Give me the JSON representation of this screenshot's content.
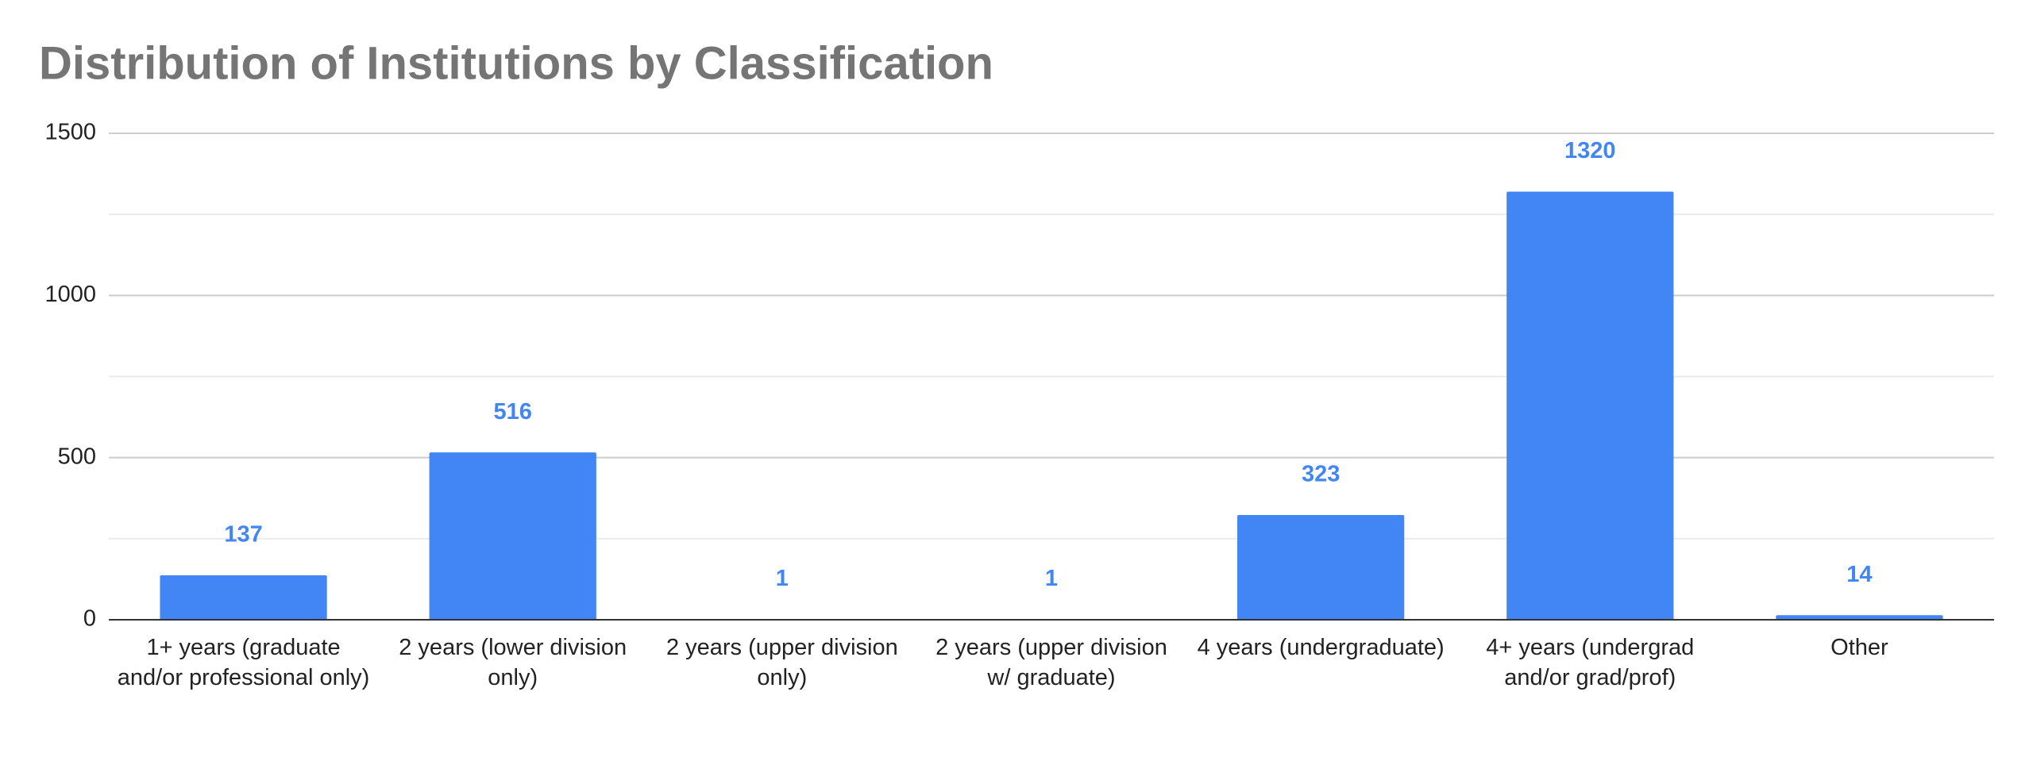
{
  "chart_data": {
    "type": "bar",
    "title": "Distribution of Institutions by Classification",
    "categories": [
      "1+ years (graduate and/or professional only)",
      "2 years (lower division only)",
      "2 years (upper division only)",
      "2 years (upper division w/ graduate)",
      "4 years (undergraduate)",
      "4+ years (undergrad and/or grad/prof)",
      "Other"
    ],
    "values": [
      137,
      516,
      1,
      1,
      323,
      1320,
      14
    ],
    "color": "#4285f4",
    "ylim": [
      0,
      1500
    ],
    "yticks": [
      0,
      500,
      1000,
      1500
    ],
    "minor_yticks": [
      250,
      750,
      1250
    ],
    "grid": true
  }
}
